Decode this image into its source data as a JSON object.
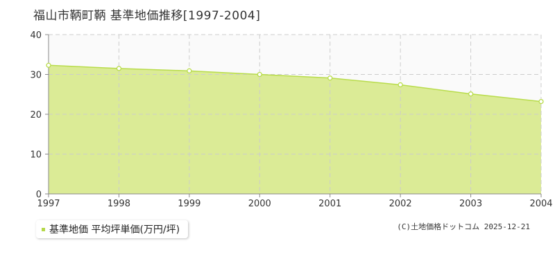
{
  "title": "福山市鞆町鞆 基準地価推移[1997-2004]",
  "copyright": "(C)土地価格ドットコム 2025-12-21",
  "colors": {
    "fill": "#dbeb96",
    "line": "#b8dc4a",
    "grid": "#cccccc",
    "axis": "#888888",
    "plot_bg": "#fafafa"
  },
  "chart_data": {
    "type": "area",
    "title": "福山市鞆町鞆 基準地価推移[1997-2004]",
    "x": [
      "1997",
      "1998",
      "1999",
      "2000",
      "2001",
      "2002",
      "2003",
      "2004"
    ],
    "series": [
      {
        "name": "基準地価 平均坪単価(万円/坪)",
        "values": [
          32.3,
          31.5,
          30.9,
          30.0,
          29.1,
          27.4,
          25.1,
          23.2
        ]
      }
    ],
    "ylim": [
      0,
      40
    ],
    "yticks": [
      0,
      10,
      20,
      30,
      40
    ],
    "grid": true,
    "legend": "bottom-left"
  }
}
